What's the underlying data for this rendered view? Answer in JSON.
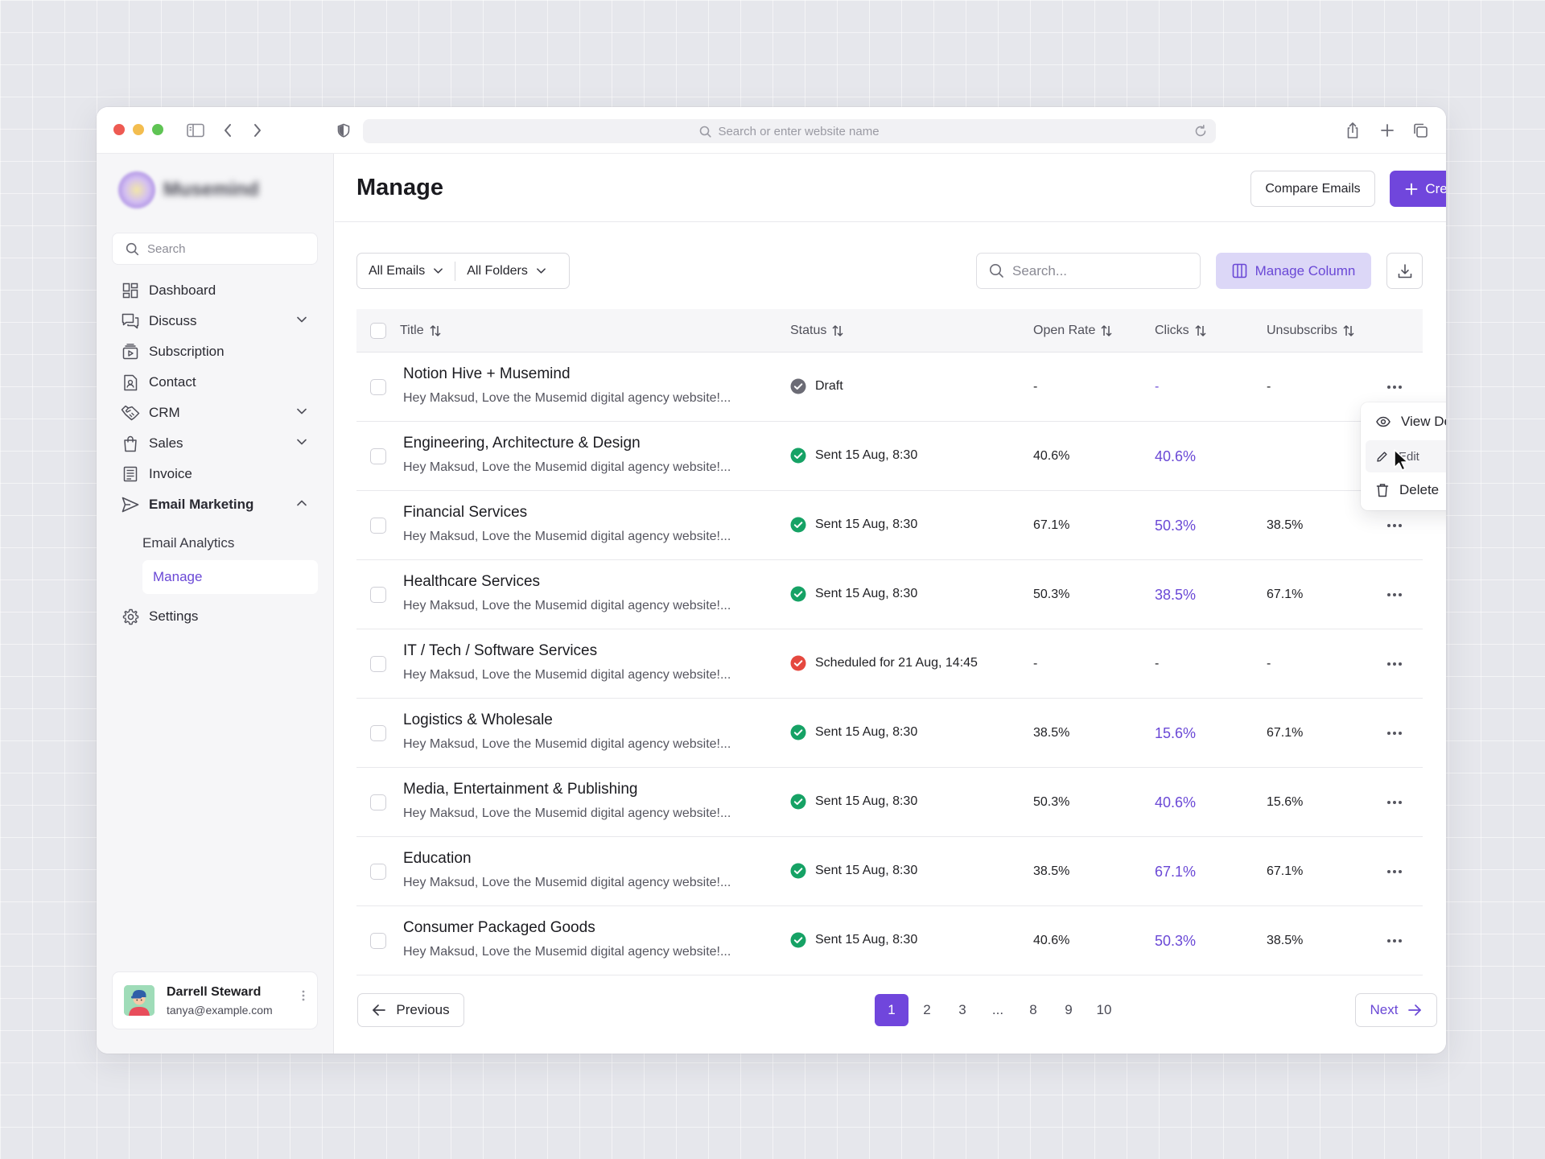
{
  "browser": {
    "url_placeholder": "Search or enter website name"
  },
  "sidebar": {
    "brand": "Musemind",
    "search_placeholder": "Search",
    "items": [
      {
        "label": "Dashboard"
      },
      {
        "label": "Discuss"
      },
      {
        "label": "Subscription"
      },
      {
        "label": "Contact"
      },
      {
        "label": "CRM"
      },
      {
        "label": "Sales"
      },
      {
        "label": "Invoice"
      },
      {
        "label": "Email Marketing"
      },
      {
        "label": "Email Analytics"
      },
      {
        "label": "Manage"
      },
      {
        "label": "Settings"
      }
    ],
    "user": {
      "name": "Darrell Steward",
      "email": "tanya@example.com"
    }
  },
  "header": {
    "title": "Manage",
    "compare_label": "Compare Emails",
    "create_label": "Create Email"
  },
  "toolbar": {
    "filter_emails": "All Emails",
    "filter_folders": "All Folders",
    "search_placeholder": "Search...",
    "manage_column_label": "Manage Column"
  },
  "table": {
    "columns": [
      "Title",
      "Status",
      "Open Rate",
      "Clicks",
      "Unsubscribs"
    ],
    "rows": [
      {
        "title": "Notion Hive + Musemind",
        "preview": "Hey Maksud, Love the Musemid digital agency website!...",
        "status": "Draft",
        "status_type": "draft",
        "open_rate": "-",
        "clicks": "-",
        "unsubscribes": "-"
      },
      {
        "title": "Engineering, Architecture & Design",
        "preview": "Hey Maksud, Love the Musemid digital agency website!...",
        "status": "Sent 15 Aug, 8:30",
        "status_type": "sent",
        "open_rate": "40.6%",
        "clicks": "40.6%",
        "unsubscribes": ""
      },
      {
        "title": "Financial Services",
        "preview": "Hey Maksud, Love the Musemid digital agency website!...",
        "status": "Sent 15 Aug, 8:30",
        "status_type": "sent",
        "open_rate": "67.1%",
        "clicks": "50.3%",
        "unsubscribes": "38.5%"
      },
      {
        "title": "Healthcare Services",
        "preview": "Hey Maksud, Love the Musemid digital agency website!...",
        "status": "Sent 15 Aug, 8:30",
        "status_type": "sent",
        "open_rate": "50.3%",
        "clicks": "38.5%",
        "unsubscribes": "67.1%"
      },
      {
        "title": "IT / Tech / Software Services",
        "preview": "Hey Maksud, Love the Musemid digital agency website!...",
        "status": "Scheduled for 21 Aug, 14:45",
        "status_type": "scheduled",
        "open_rate": "-",
        "clicks": "-",
        "unsubscribes": "-"
      },
      {
        "title": "Logistics & Wholesale",
        "preview": "Hey Maksud, Love the Musemid digital agency website!...",
        "status": "Sent 15 Aug, 8:30",
        "status_type": "sent",
        "open_rate": "38.5%",
        "clicks": "15.6%",
        "unsubscribes": "67.1%"
      },
      {
        "title": "Media, Entertainment & Publishing",
        "preview": "Hey Maksud, Love the Musemid digital agency website!...",
        "status": "Sent 15 Aug, 8:30",
        "status_type": "sent",
        "open_rate": "50.3%",
        "clicks": "40.6%",
        "unsubscribes": "15.6%"
      },
      {
        "title": "Education",
        "preview": "Hey Maksud, Love the Musemid digital agency website!...",
        "status": "Sent 15 Aug, 8:30",
        "status_type": "sent",
        "open_rate": "38.5%",
        "clicks": "67.1%",
        "unsubscribes": "67.1%"
      },
      {
        "title": "Consumer Packaged Goods",
        "preview": "Hey Maksud, Love the Musemid digital agency website!...",
        "status": "Sent 15 Aug, 8:30",
        "status_type": "sent",
        "open_rate": "40.6%",
        "clicks": "50.3%",
        "unsubscribes": "38.5%"
      }
    ]
  },
  "context_menu": {
    "items": [
      "View Details",
      "Edit",
      "Delete"
    ]
  },
  "pagination": {
    "previous_label": "Previous",
    "next_label": "Next",
    "pages": [
      "1",
      "2",
      "3",
      "...",
      "8",
      "9",
      "10"
    ],
    "current": "1"
  },
  "colors": {
    "accent": "#7046dc",
    "sent": "#16a265",
    "scheduled": "#e5483f",
    "draft": "#6b6b75"
  }
}
